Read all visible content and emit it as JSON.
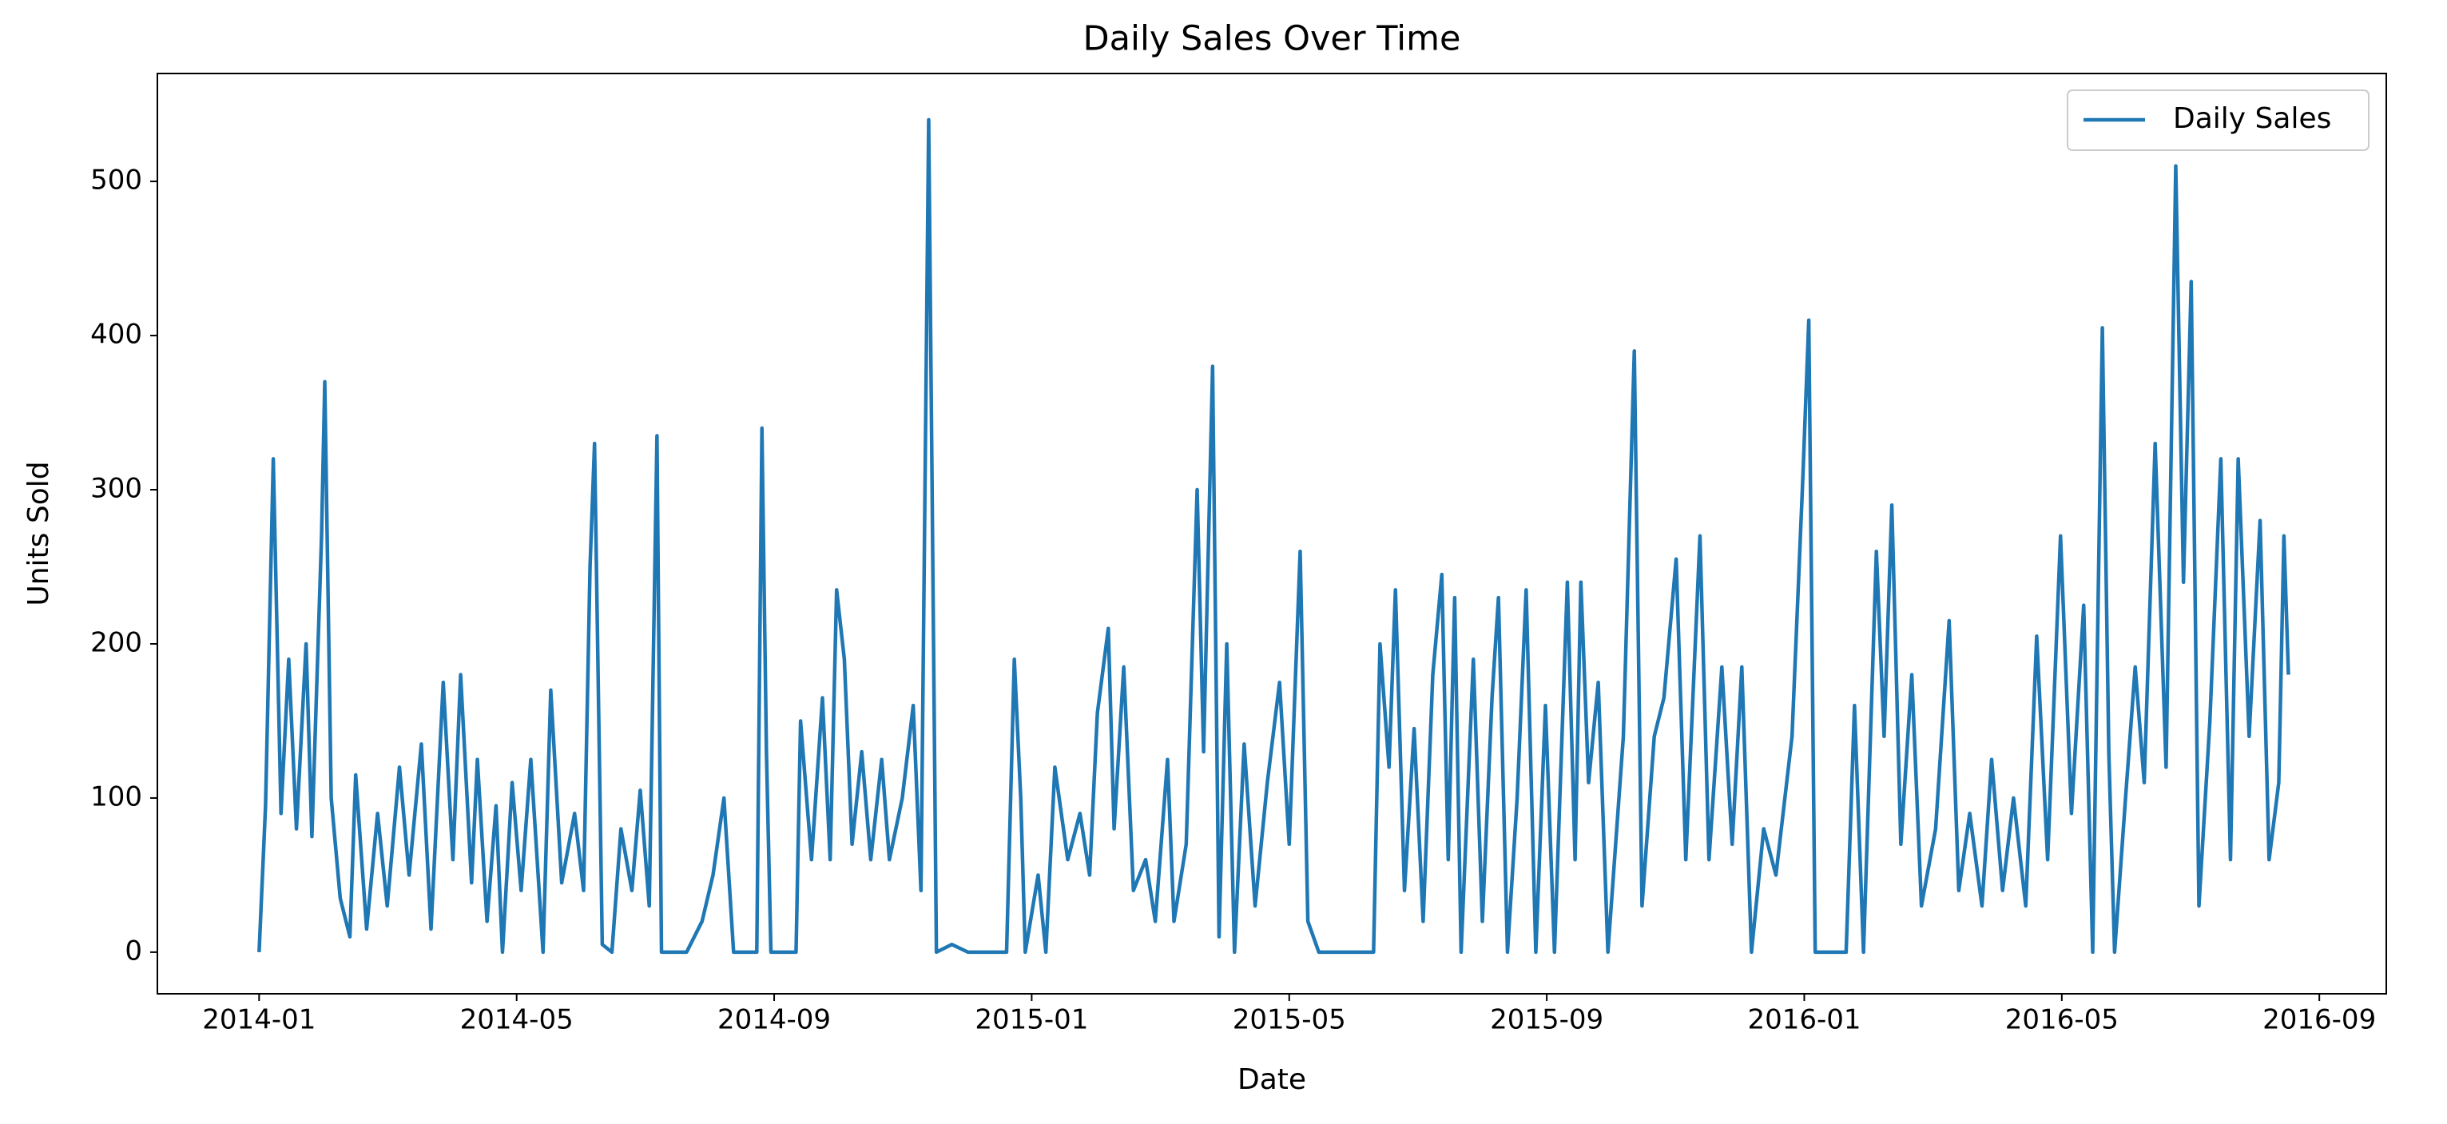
{
  "chart_data": {
    "type": "line",
    "title": "Daily Sales Over Time",
    "x_label": "Date",
    "y_label": "Units Sold",
    "x": [
      0,
      0.1,
      0.22,
      0.34,
      0.46,
      0.58,
      0.73,
      0.82,
      0.97,
      1.02,
      1.12,
      1.26,
      1.41,
      1.5,
      1.67,
      1.84,
      1.99,
      2.18,
      2.33,
      2.52,
      2.67,
      2.86,
      3.01,
      3.13,
      3.3,
      3.39,
      3.54,
      3.68,
      3.78,
      3.93,
      4.07,
      4.22,
      4.41,
      4.53,
      4.7,
      4.9,
      5.04,
      5.14,
      5.21,
      5.33,
      5.48,
      5.62,
      5.79,
      5.92,
      6.06,
      6.18,
      6.25,
      6.64,
      6.88,
      7.05,
      7.22,
      7.37,
      7.73,
      7.81,
      7.88,
      7.95,
      8.34,
      8.41,
      8.58,
      8.75,
      8.87,
      8.97,
      9.09,
      9.21,
      9.36,
      9.5,
      9.67,
      9.79,
      9.99,
      10.16,
      10.28,
      10.4,
      10.52,
      10.76,
      11.01,
      11.61,
      11.73,
      11.83,
      11.9,
      12.1,
      12.22,
      12.36,
      12.56,
      12.75,
      12.9,
      13.02,
      13.19,
      13.28,
      13.43,
      13.58,
      13.77,
      13.92,
      14.11,
      14.21,
      14.4,
      14.57,
      14.67,
      14.81,
      14.91,
      15.03,
      15.15,
      15.3,
      15.47,
      15.66,
      15.85,
      16.0,
      16.17,
      16.29,
      16.46,
      17.31,
      17.41,
      17.55,
      17.65,
      17.79,
      17.94,
      18.08,
      18.23,
      18.37,
      18.47,
      18.57,
      18.67,
      18.86,
      19.0,
      19.15,
      19.25,
      19.39,
      19.54,
      19.68,
      19.83,
      19.98,
      20.12,
      20.32,
      20.44,
      20.53,
      20.65,
      20.8,
      20.95,
      21.19,
      21.36,
      21.48,
      21.67,
      21.82,
      22.01,
      22.16,
      22.38,
      22.52,
      22.72,
      22.88,
      23.03,
      23.18,
      23.37,
      23.56,
      23.81,
      23.98,
      24.07,
      24.17,
      24.34,
      24.65,
      24.78,
      24.92,
      25.12,
      25.24,
      25.36,
      25.5,
      25.67,
      25.82,
      26.04,
      26.25,
      26.4,
      26.57,
      26.76,
      26.91,
      27.08,
      27.25,
      27.44,
      27.61,
      27.78,
      27.98,
      28.15,
      28.34,
      28.48,
      28.63,
      28.73,
      28.82,
      28.99,
      29.14,
      29.28,
      29.45,
      29.62,
      29.77,
      29.89,
      30.01,
      30.13,
      30.3,
      30.47,
      30.62,
      30.74,
      30.91,
      31.08,
      31.22,
      31.37,
      31.45,
      31.52
    ],
    "series": [
      {
        "name": "Daily Sales",
        "color": "#1f77b4",
        "values": [
          0,
          95,
          320,
          90,
          190,
          80,
          200,
          75,
          270,
          370,
          100,
          35,
          10,
          115,
          15,
          90,
          30,
          120,
          50,
          135,
          15,
          175,
          60,
          180,
          45,
          125,
          20,
          95,
          0,
          110,
          40,
          125,
          0,
          170,
          45,
          90,
          40,
          250,
          330,
          5,
          0,
          80,
          40,
          105,
          30,
          335,
          0,
          0,
          20,
          50,
          100,
          0,
          0,
          340,
          130,
          0,
          0,
          150,
          60,
          165,
          60,
          235,
          190,
          70,
          130,
          60,
          125,
          60,
          100,
          160,
          40,
          540,
          0,
          5,
          0,
          0,
          190,
          100,
          0,
          50,
          0,
          120,
          60,
          90,
          50,
          155,
          210,
          80,
          185,
          40,
          60,
          20,
          125,
          20,
          70,
          300,
          130,
          380,
          10,
          200,
          0,
          135,
          30,
          110,
          175,
          70,
          260,
          20,
          0,
          0,
          200,
          120,
          235,
          40,
          145,
          20,
          180,
          245,
          60,
          230,
          0,
          190,
          20,
          165,
          230,
          0,
          100,
          235,
          0,
          160,
          0,
          240,
          60,
          240,
          110,
          175,
          0,
          140,
          390,
          30,
          140,
          165,
          255,
          60,
          270,
          60,
          185,
          70,
          185,
          0,
          80,
          50,
          140,
          310,
          410,
          0,
          0,
          0,
          160,
          0,
          260,
          140,
          290,
          70,
          180,
          30,
          80,
          215,
          40,
          90,
          30,
          125,
          40,
          100,
          30,
          205,
          60,
          270,
          90,
          225,
          0,
          405,
          130,
          0,
          100,
          185,
          110,
          330,
          120,
          510,
          240,
          435,
          30,
          150,
          320,
          60,
          320,
          140,
          280,
          60,
          110,
          270,
          180
        ]
      }
    ],
    "xlim": [
      -1.58,
      33.04
    ],
    "xticks": [
      {
        "value": 0,
        "label": "2014-01"
      },
      {
        "value": 4,
        "label": "2014-05"
      },
      {
        "value": 8,
        "label": "2014-09"
      },
      {
        "value": 12,
        "label": "2015-01"
      },
      {
        "value": 16,
        "label": "2015-05"
      },
      {
        "value": 20,
        "label": "2015-09"
      },
      {
        "value": 24,
        "label": "2016-01"
      },
      {
        "value": 28,
        "label": "2016-05"
      },
      {
        "value": 32,
        "label": "2016-09"
      }
    ],
    "ylim": [
      -27,
      570
    ],
    "yticks": [
      0,
      100,
      200,
      300,
      400,
      500
    ],
    "legend": "upper right"
  }
}
